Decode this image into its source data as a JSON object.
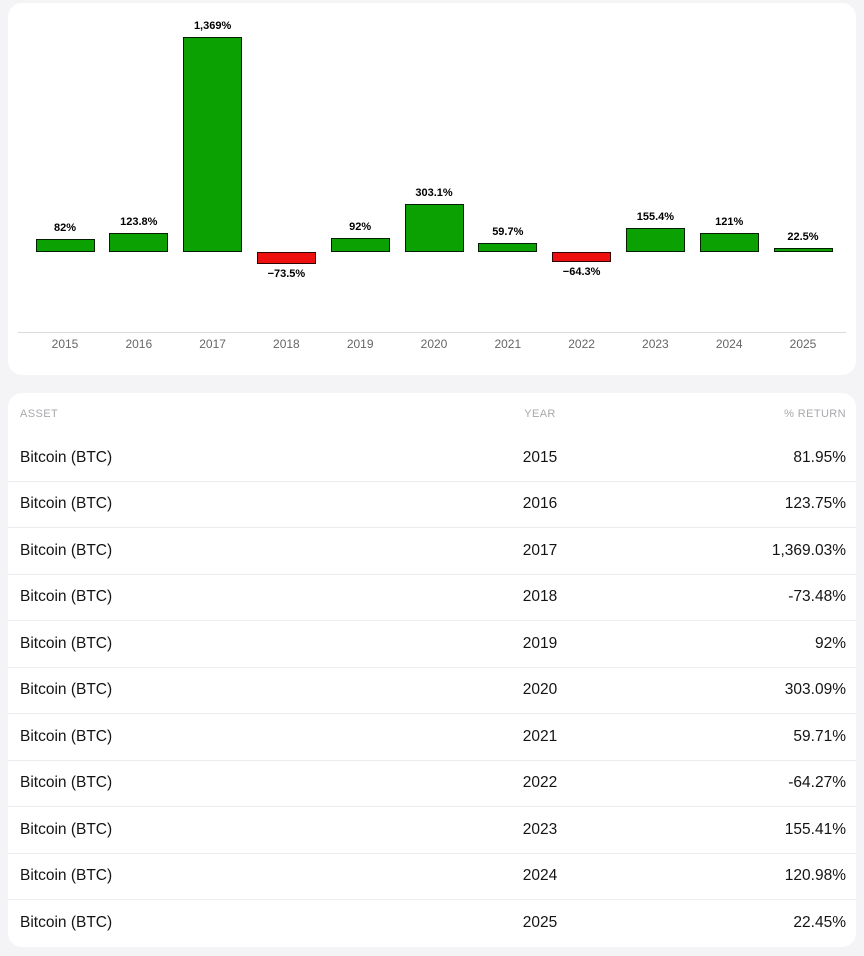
{
  "chart_data": {
    "type": "bar",
    "title": "",
    "xlabel": "",
    "ylabel": "",
    "grid": false,
    "legend": false,
    "categories": [
      "2015",
      "2016",
      "2017",
      "2018",
      "2019",
      "2020",
      "2021",
      "2022",
      "2023",
      "2024",
      "2025"
    ],
    "values": [
      81.95,
      123.75,
      1369.03,
      -73.48,
      92,
      303.09,
      59.71,
      -64.27,
      155.41,
      120.98,
      22.45
    ],
    "value_labels": [
      "82%",
      "123.8%",
      "1,369%",
      "−73.5%",
      "92%",
      "303.1%",
      "59.7%",
      "−64.3%",
      "155.4%",
      "121%",
      "22.5%"
    ],
    "positive_color": "#0ba102",
    "negative_color": "#ee0f0f",
    "bar_border_color": "rgba(0,0,0,0.8)",
    "axis_label_color": "#666666",
    "axis_line_color": "#d8d8de"
  },
  "chart": {
    "menu_icon": "hamburger-icon"
  },
  "table": {
    "columns": {
      "asset": "ASSET",
      "year": "YEAR",
      "return": "% RETURN"
    },
    "rows": [
      {
        "asset": "Bitcoin (BTC)",
        "year": "2015",
        "return": "81.95%"
      },
      {
        "asset": "Bitcoin (BTC)",
        "year": "2016",
        "return": "123.75%"
      },
      {
        "asset": "Bitcoin (BTC)",
        "year": "2017",
        "return": "1,369.03%"
      },
      {
        "asset": "Bitcoin (BTC)",
        "year": "2018",
        "return": "-73.48%"
      },
      {
        "asset": "Bitcoin (BTC)",
        "year": "2019",
        "return": "92%"
      },
      {
        "asset": "Bitcoin (BTC)",
        "year": "2020",
        "return": "303.09%"
      },
      {
        "asset": "Bitcoin (BTC)",
        "year": "2021",
        "return": "59.71%"
      },
      {
        "asset": "Bitcoin (BTC)",
        "year": "2022",
        "return": "-64.27%"
      },
      {
        "asset": "Bitcoin (BTC)",
        "year": "2023",
        "return": "155.41%"
      },
      {
        "asset": "Bitcoin (BTC)",
        "year": "2024",
        "return": "120.98%"
      },
      {
        "asset": "Bitcoin (BTC)",
        "year": "2025",
        "return": "22.45%"
      }
    ]
  }
}
